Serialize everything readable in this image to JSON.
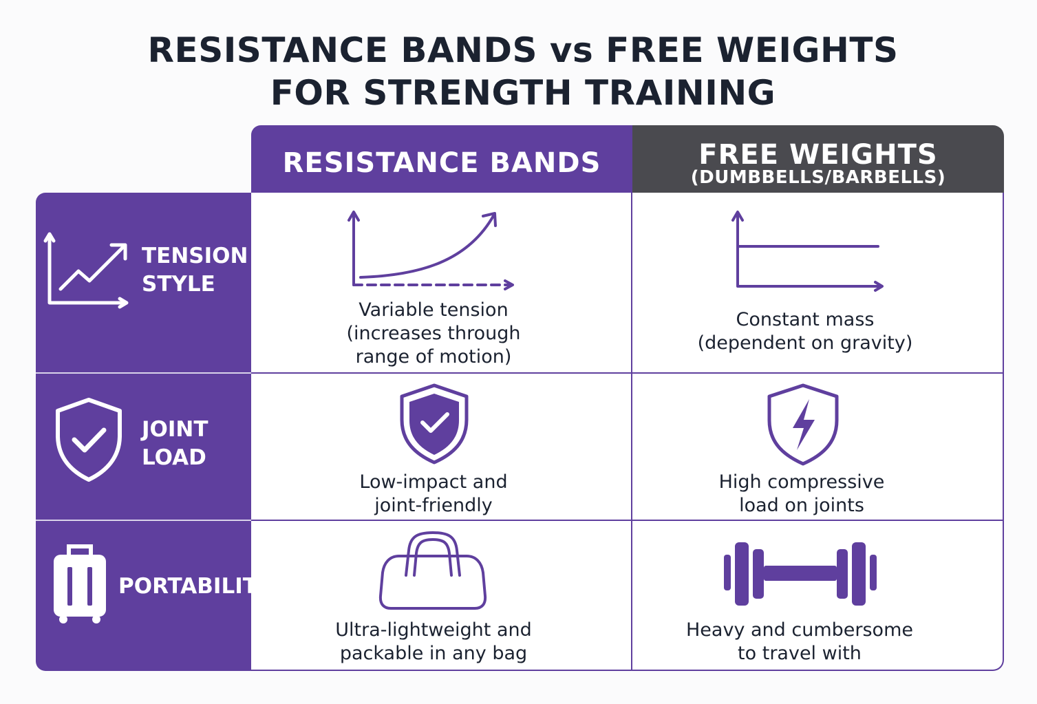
{
  "title": {
    "line1": "RESISTANCE BANDS vs FREE WEIGHTS",
    "line2": "FOR STRENGTH TRAINING"
  },
  "columns": {
    "bands": {
      "label": "RESISTANCE BANDS"
    },
    "weights": {
      "label": "FREE WEIGHTS",
      "sublabel": "(DUMBBELLS/BARBELLS)"
    }
  },
  "rows": [
    {
      "label_line1": "TENSION",
      "label_line2": "STYLE",
      "icon": "trend-chart-icon",
      "bands": {
        "icon": "increasing-curve-icon",
        "line1": "Variable tension",
        "line2": "(increases through",
        "line3": "range of motion)"
      },
      "weights": {
        "icon": "flat-line-icon",
        "line1": "Constant mass",
        "line2": "(dependent on gravity)"
      }
    },
    {
      "label_line1": "JOINT",
      "label_line2": "LOAD",
      "icon": "shield-check-icon",
      "bands": {
        "icon": "shield-check-icon",
        "line1": "Low-impact and",
        "line2": "joint-friendly"
      },
      "weights": {
        "icon": "shield-lightning-icon",
        "line1": "High compressive",
        "line2": "load on joints"
      }
    },
    {
      "label": "PORTABILITY",
      "icon": "suitcase-icon",
      "bands": {
        "icon": "duffel-bag-icon",
        "line1": "Ultra-lightweight and",
        "line2": "packable in any bag"
      },
      "weights": {
        "icon": "dumbbell-icon",
        "line1": "Heavy and cumbersome",
        "line2": "to travel with"
      }
    }
  ],
  "colors": {
    "purple": "#5f3f9e",
    "dark_gray": "#4a4a4f",
    "title_text": "#1b2230"
  }
}
